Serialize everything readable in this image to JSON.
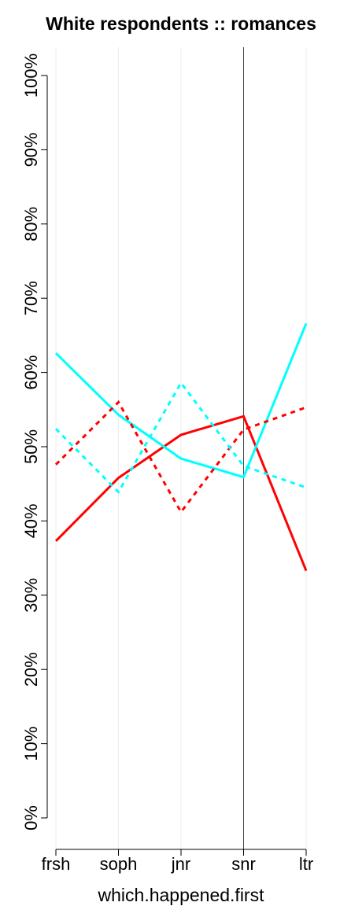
{
  "chart_data": {
    "type": "line",
    "title": "White respondents :: romances",
    "x_label": "which.happened.first",
    "categories": [
      "frsh",
      "soph",
      "jnr",
      "snr",
      "ltr"
    ],
    "series": [
      {
        "color": "#ff0000",
        "dashed": false,
        "values": [
          37.3,
          45.8,
          51.6,
          54.1,
          33.3
        ]
      },
      {
        "color": "#00ffff",
        "dashed": false,
        "values": [
          62.6,
          54.3,
          48.4,
          45.9,
          66.6
        ]
      },
      {
        "color": "#ff0000",
        "dashed": true,
        "values": [
          47.6,
          56.0,
          41.2,
          52.3,
          55.3
        ]
      },
      {
        "color": "#00ffff",
        "dashed": true,
        "values": [
          52.4,
          43.9,
          58.6,
          47.4,
          44.5
        ]
      }
    ],
    "ylim": [
      0,
      100
    ],
    "yticks": [
      {
        "value": 0,
        "label": "0%"
      },
      {
        "value": 10,
        "label": "10%"
      },
      {
        "value": 20,
        "label": "20%"
      },
      {
        "value": 30,
        "label": "30%"
      },
      {
        "value": 40,
        "label": "40%"
      },
      {
        "value": 50,
        "label": "50%"
      },
      {
        "value": 60,
        "label": "60%"
      },
      {
        "value": 70,
        "label": "70%"
      },
      {
        "value": 80,
        "label": "80%"
      },
      {
        "value": 90,
        "label": "90%"
      },
      {
        "value": 100,
        "label": "100%"
      }
    ],
    "grid": "x",
    "reference_line": "snr"
  }
}
